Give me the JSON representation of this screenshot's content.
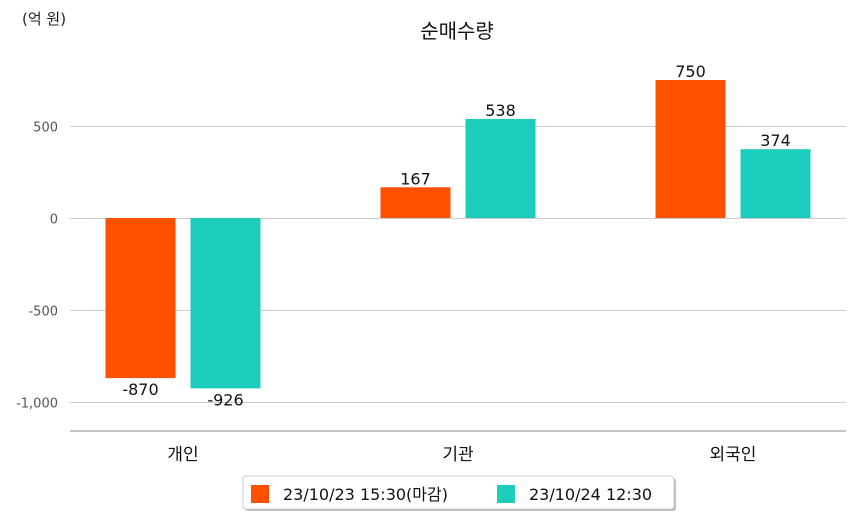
{
  "chart_data": {
    "type": "bar",
    "title": "순매수량",
    "unit_label": "(억 원)",
    "categories": [
      "개인",
      "기관",
      "외국인"
    ],
    "series": [
      {
        "name": "23/10/23 15:30(마감)",
        "color": "#FF5000",
        "values": [
          -870,
          167,
          750
        ]
      },
      {
        "name": "23/10/24 12:30",
        "color": "#1DCDBC",
        "values": [
          -926,
          538,
          374
        ]
      }
    ],
    "yticks": [
      500,
      0,
      -500,
      -1000
    ],
    "ytick_labels": [
      "500",
      "0",
      "-500",
      "-1,000"
    ],
    "ylim": [
      -1160,
      800
    ],
    "grid": true,
    "legend_position": "bottom"
  }
}
